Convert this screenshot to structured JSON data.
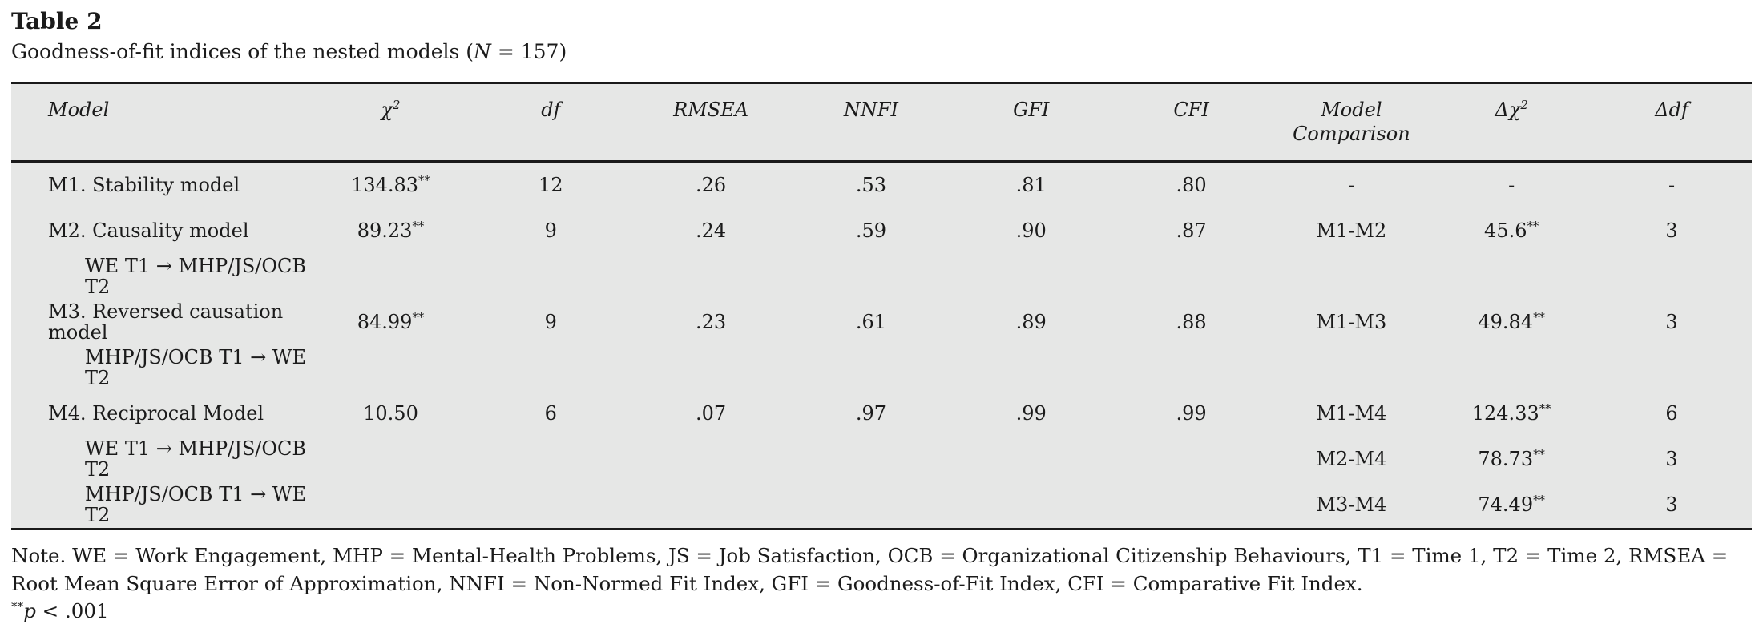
{
  "page": {
    "label": "Table 2",
    "caption": {
      "pre": "Goodness-of-fit indices of the nested models (",
      "n": "N",
      "post": " = 157)"
    }
  },
  "table": {
    "header": {
      "model": "Model",
      "chi2": {
        "base": "χ",
        "sup": "2"
      },
      "df": "df",
      "rmsea": "RMSEA",
      "nnfi": "NNFI",
      "gfi": "GFI",
      "cfi": "CFI",
      "comparison": {
        "line1": "Model",
        "line2": "Comparison"
      },
      "dchi2": {
        "base": "Δχ",
        "sup": "2"
      },
      "ddf": "Δdf"
    },
    "rows": [
      {
        "model": "M1. Stability model",
        "chi2": "134.83",
        "chi2s": "**",
        "df": "12",
        "rmsea": ".26",
        "nnfi": ".53",
        "gfi": ".81",
        "cfi": ".80",
        "comp": "-",
        "dchi2": "-",
        "dchi2s": "",
        "ddf": "-"
      },
      {
        "model": "M2. Causality model",
        "chi2": "89.23",
        "chi2s": "**",
        "df": "9",
        "rmsea": ".24",
        "nnfi": ".59",
        "gfi": ".90",
        "cfi": ".87",
        "comp": "M1-M2",
        "dchi2": "45.6",
        "dchi2s": "**",
        "ddf": "3"
      },
      {
        "model": "WE T1 → MHP/JS/OCB T2",
        "chi2": "",
        "chi2s": "",
        "df": "",
        "rmsea": "",
        "nnfi": "",
        "gfi": "",
        "cfi": "",
        "comp": "",
        "dchi2": "",
        "dchi2s": "",
        "ddf": ""
      },
      {
        "model": "M3. Reversed causation model",
        "chi2": "84.99",
        "chi2s": "**",
        "df": "9",
        "rmsea": ".23",
        "nnfi": ".61",
        "gfi": ".89",
        "cfi": ".88",
        "comp": "M1-M3",
        "dchi2": "49.84",
        "dchi2s": "**",
        "ddf": "3"
      },
      {
        "model": "MHP/JS/OCB T1 → WE T2",
        "chi2": "",
        "chi2s": "",
        "df": "",
        "rmsea": "",
        "nnfi": "",
        "gfi": "",
        "cfi": "",
        "comp": "",
        "dchi2": "",
        "dchi2s": "",
        "ddf": ""
      },
      {
        "model": "M4. Reciprocal Model",
        "chi2": "10.50",
        "chi2s": "",
        "df": "6",
        "rmsea": ".07",
        "nnfi": ".97",
        "gfi": ".99",
        "cfi": ".99",
        "comp": "M1-M4",
        "dchi2": "124.33",
        "dchi2s": "**",
        "ddf": "6"
      },
      {
        "model": "WE T1 → MHP/JS/OCB T2",
        "chi2": "",
        "chi2s": "",
        "df": "",
        "rmsea": "",
        "nnfi": "",
        "gfi": "",
        "cfi": "",
        "comp": "M2-M4",
        "dchi2": "78.73",
        "dchi2s": "**",
        "ddf": "3"
      },
      {
        "model": "MHP/JS/OCB T1 → WE T2",
        "chi2": "",
        "chi2s": "",
        "df": "",
        "rmsea": "",
        "nnfi": "",
        "gfi": "",
        "cfi": "",
        "comp": "M3-M4",
        "dchi2": "74.49",
        "dchi2s": "**",
        "ddf": "3"
      }
    ]
  },
  "notes": {
    "note": "Note. WE = Work Engagement, MHP = Mental-Health Problems, JS = Job Satisfaction, OCB = Organizational Citizenship Behaviours, T1 = Time 1, T2 = Time 2, RMSEA = Root Mean Square Error of Approximation, NNFI = Non-Normed Fit Index, GFI = Goodness-of-Fit Index, CFI = Comparative Fit Index.",
    "sig": {
      "stars": "**",
      "p": "p",
      "rest": " < .001"
    }
  },
  "colors": {
    "table_background": "#e6e7e6",
    "rule": "#1a1a1a",
    "text": "#1b1b1b"
  }
}
